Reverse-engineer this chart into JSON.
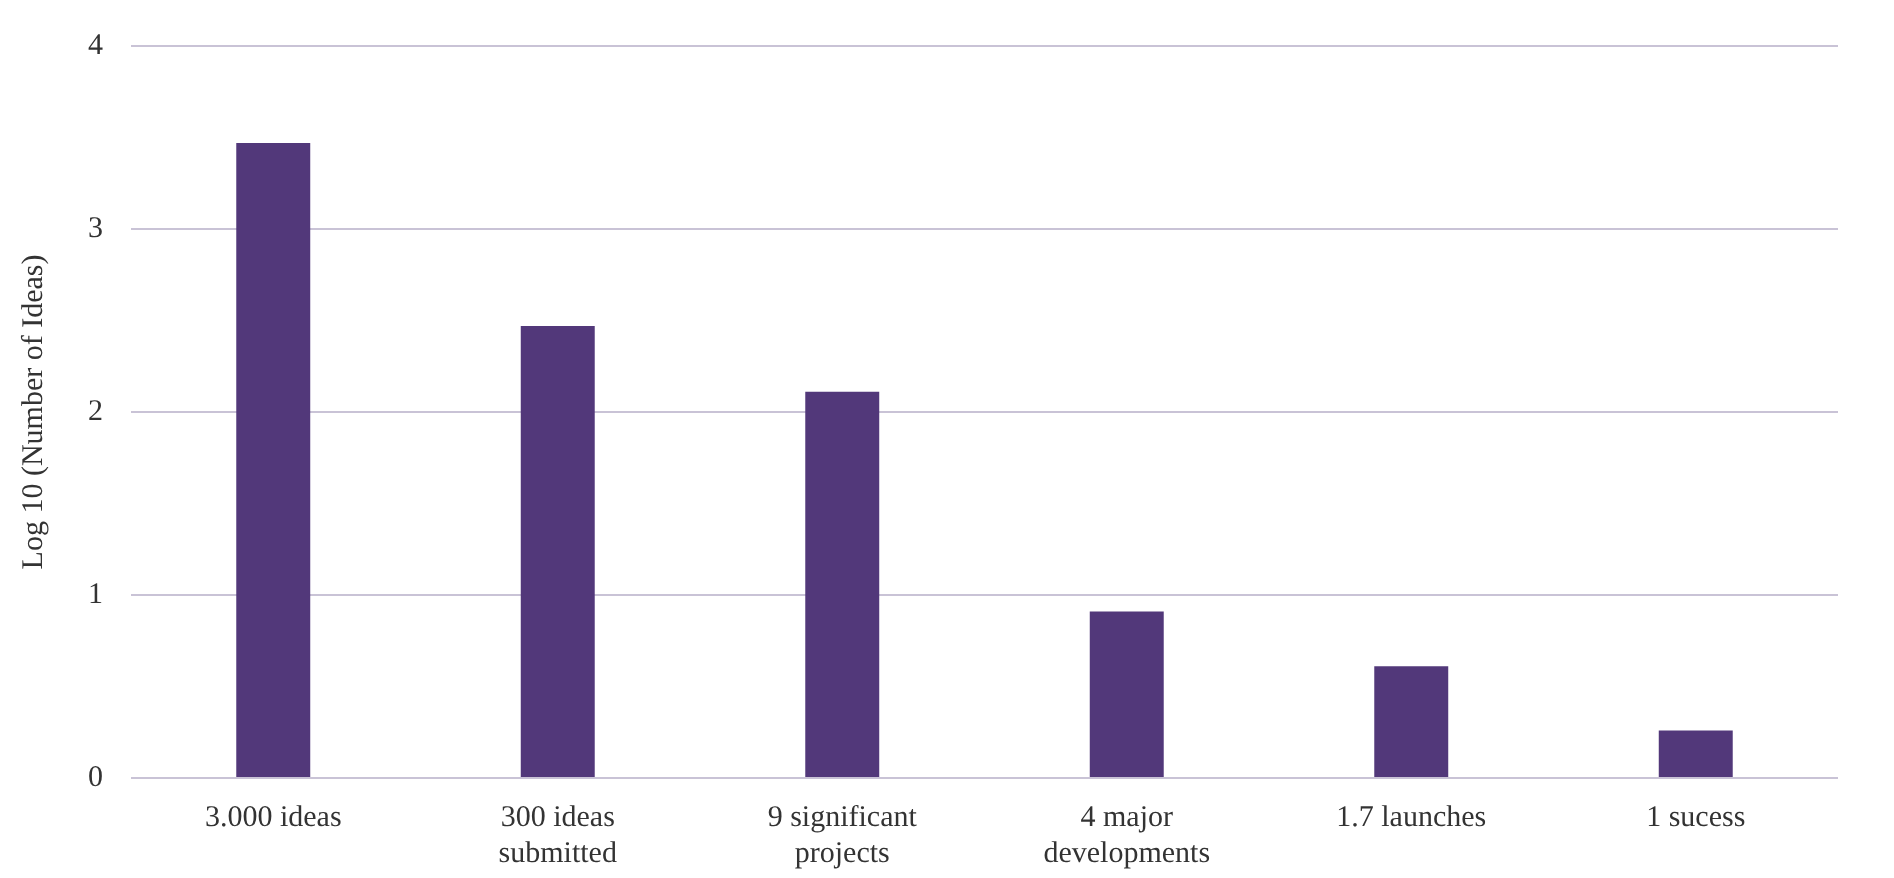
{
  "chart_data": {
    "type": "bar",
    "ylabel": "Log 10 (Number of Ideas)",
    "categories": [
      "3.000 ideas",
      "300 ideas submitted",
      "9 significant projects",
      "4 major developments",
      "1.7 launches",
      "1 sucess"
    ],
    "values": [
      3.47,
      2.47,
      2.11,
      0.91,
      0.61,
      0.26
    ],
    "color": "#52387a",
    "ylim": [
      0,
      4
    ],
    "yticks": [
      0,
      1,
      2,
      3,
      4
    ],
    "grid": "y",
    "legend": false
  }
}
